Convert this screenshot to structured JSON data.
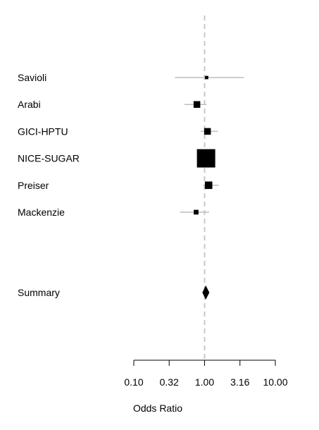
{
  "chart_data": {
    "type": "forest",
    "xlabel": "Odds Ratio",
    "x_scale": "log10",
    "xlim": [
      0.1,
      10.0
    ],
    "ticks": [
      {
        "value": 0.1,
        "label": "0.10"
      },
      {
        "value": 0.316,
        "label": "0.32"
      },
      {
        "value": 1.0,
        "label": "1.00"
      },
      {
        "value": 3.162,
        "label": "3.16"
      },
      {
        "value": 10.0,
        "label": "10.00"
      }
    ],
    "reference_line": 1.0,
    "studies": [
      {
        "name": "Savioli",
        "or": 1.07,
        "lower": 0.38,
        "upper": 3.6,
        "weight": 1
      },
      {
        "name": "Arabi",
        "or": 0.78,
        "lower": 0.52,
        "upper": 1.07,
        "weight": 4
      },
      {
        "name": "GICI-HPTU",
        "or": 1.1,
        "lower": 0.88,
        "upper": 1.55,
        "weight": 4
      },
      {
        "name": "NICE-SUGAR",
        "or": 1.05,
        "lower": 0.88,
        "upper": 1.25,
        "weight": 30
      },
      {
        "name": "Preiser",
        "or": 1.14,
        "lower": 0.95,
        "upper": 1.58,
        "weight": 5
      },
      {
        "name": "Mackenzie",
        "or": 0.76,
        "lower": 0.45,
        "upper": 1.16,
        "weight": 2
      }
    ],
    "summary": {
      "name": "Summary",
      "or": 1.04,
      "lower": 0.93,
      "upper": 1.17
    },
    "colors": {
      "ci_line": "#bebebe",
      "reference_line": "#c8c8c8",
      "marker": "#000000"
    }
  }
}
